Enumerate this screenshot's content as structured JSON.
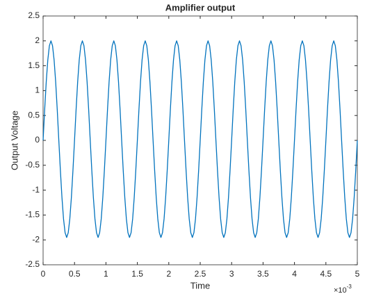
{
  "chart_data": {
    "type": "line",
    "title": "Amplifier output",
    "xlabel": "Time",
    "ylabel": "Output Voltage",
    "x_exponent": {
      "base": "×10",
      "power": "-3"
    },
    "xlim": [
      0,
      0.005
    ],
    "ylim": [
      -2.5,
      2.5
    ],
    "xticks": [
      0,
      {
        "value": 0.0005,
        "label": "0.5"
      },
      {
        "value": 0.001,
        "label": "1"
      },
      {
        "value": 0.0015,
        "label": "1.5"
      },
      {
        "value": 0.002,
        "label": "2"
      },
      {
        "value": 0.0025,
        "label": "2.5"
      },
      {
        "value": 0.003,
        "label": "3"
      },
      {
        "value": 0.0035,
        "label": "3.5"
      },
      {
        "value": 0.004,
        "label": "4"
      },
      {
        "value": 0.0045,
        "label": "4.5"
      },
      {
        "value": 0.005,
        "label": "5"
      }
    ],
    "yticks": [
      -2.5,
      -2,
      -1.5,
      -1,
      -0.5,
      0,
      0.5,
      1,
      1.5,
      2,
      2.5
    ],
    "grid": false,
    "x": [
      0,
      2.5e-05,
      5e-05,
      7.5e-05,
      0.0001,
      0.000125,
      0.00015,
      0.000175,
      0.0002,
      0.000225,
      0.00025,
      0.000275,
      0.0003,
      0.000325,
      0.00035,
      0.000375,
      0.0004,
      0.000425,
      0.00045,
      0.000475,
      0.0005,
      0.000525,
      0.00055,
      0.000575,
      0.0006,
      0.000625,
      0.00065,
      0.000675,
      0.0007,
      0.000725,
      0.00075,
      0.000775,
      0.0008,
      0.000825,
      0.00085,
      0.000875,
      0.0009,
      0.000925,
      0.00095,
      0.000975,
      0.001,
      0.001025,
      0.00105,
      0.001075,
      0.0011,
      0.001125,
      0.00115,
      0.001175,
      0.0012,
      0.001225,
      0.00125,
      0.001275,
      0.0013,
      0.001325,
      0.00135,
      0.001375,
      0.0014,
      0.001425,
      0.00145,
      0.001475,
      0.0015,
      0.001525,
      0.00155,
      0.001575,
      0.0016,
      0.001625,
      0.00165,
      0.001675,
      0.0017,
      0.001725,
      0.00175,
      0.001775,
      0.0018,
      0.001825,
      0.00185,
      0.001875,
      0.0019,
      0.001925,
      0.00195,
      0.001975,
      0.002,
      0.002025,
      0.00205,
      0.002075,
      0.0021,
      0.002125,
      0.00215,
      0.002175,
      0.0022,
      0.002225,
      0.00225,
      0.002275,
      0.0023,
      0.002325,
      0.00235,
      0.002375,
      0.0024,
      0.002425,
      0.00245,
      0.002475,
      0.0025,
      0.002525,
      0.00255,
      0.002575,
      0.0026,
      0.002625,
      0.00265,
      0.002675,
      0.0027,
      0.002725,
      0.00275,
      0.002775,
      0.0028,
      0.002825,
      0.00285,
      0.002875,
      0.0029,
      0.002925,
      0.00295,
      0.002975,
      0.003,
      0.003025,
      0.00305,
      0.003075,
      0.0031,
      0.003125,
      0.00315,
      0.003175,
      0.0032,
      0.003225,
      0.00325,
      0.003275,
      0.0033,
      0.003325,
      0.00335,
      0.003375,
      0.0034,
      0.003425,
      0.00345,
      0.003475,
      0.0035,
      0.003525,
      0.00355,
      0.003575,
      0.0036,
      0.003625,
      0.00365,
      0.003675,
      0.0037,
      0.003725,
      0.00375,
      0.003775,
      0.0038,
      0.003825,
      0.00385,
      0.003875,
      0.0039,
      0.003925,
      0.00395,
      0.003975,
      0.004,
      0.004025,
      0.00405,
      0.004075,
      0.0041,
      0.004125,
      0.00415,
      0.004175,
      0.0042,
      0.004225,
      0.00425,
      0.004275,
      0.0043,
      0.004325,
      0.00435,
      0.004375,
      0.0044,
      0.004425,
      0.00445,
      0.004475,
      0.0045,
      0.004525,
      0.00455,
      0.004575,
      0.0046,
      0.004625,
      0.00465,
      0.004675,
      0.0047,
      0.004725,
      0.00475,
      0.004775,
      0.0048,
      0.004825,
      0.00485,
      0.004875,
      0.0049,
      0.004925,
      0.00495,
      0.004975,
      0.005
    ],
    "series": [
      {
        "color": "#0072bd",
        "values": [
          0,
          0.618,
          1.176,
          1.618,
          1.902,
          2,
          1.902,
          1.618,
          1.176,
          0.618,
          0,
          -0.603,
          -1.147,
          -1.578,
          -1.855,
          -1.95,
          -1.855,
          -1.578,
          -1.147,
          -0.603,
          0,
          0.618,
          1.176,
          1.618,
          1.902,
          2,
          1.902,
          1.618,
          1.176,
          0.618,
          0,
          -0.603,
          -1.147,
          -1.578,
          -1.855,
          -1.95,
          -1.855,
          -1.578,
          -1.147,
          -0.603,
          0,
          0.618,
          1.176,
          1.618,
          1.902,
          2,
          1.902,
          1.618,
          1.176,
          0.618,
          0,
          -0.603,
          -1.147,
          -1.578,
          -1.855,
          -1.95,
          -1.855,
          -1.578,
          -1.147,
          -0.603,
          0,
          0.618,
          1.176,
          1.618,
          1.902,
          2,
          1.902,
          1.618,
          1.176,
          0.618,
          0,
          -0.603,
          -1.147,
          -1.578,
          -1.855,
          -1.95,
          -1.855,
          -1.578,
          -1.147,
          -0.603,
          0,
          0.618,
          1.176,
          1.618,
          1.902,
          2,
          1.902,
          1.618,
          1.176,
          0.618,
          0,
          -0.603,
          -1.147,
          -1.578,
          -1.855,
          -1.95,
          -1.855,
          -1.578,
          -1.147,
          -0.603,
          0,
          0.618,
          1.176,
          1.618,
          1.902,
          2,
          1.902,
          1.618,
          1.176,
          0.618,
          0,
          -0.603,
          -1.147,
          -1.578,
          -1.855,
          -1.95,
          -1.855,
          -1.578,
          -1.147,
          -0.603,
          0,
          0.618,
          1.176,
          1.618,
          1.902,
          2,
          1.902,
          1.618,
          1.176,
          0.618,
          0,
          -0.603,
          -1.147,
          -1.578,
          -1.855,
          -1.95,
          -1.855,
          -1.578,
          -1.147,
          -0.603,
          0,
          0.618,
          1.176,
          1.618,
          1.902,
          2,
          1.902,
          1.618,
          1.176,
          0.618,
          0,
          -0.603,
          -1.147,
          -1.578,
          -1.855,
          -1.95,
          -1.855,
          -1.578,
          -1.147,
          -0.603,
          0,
          0.618,
          1.176,
          1.618,
          1.902,
          2,
          1.902,
          1.618,
          1.176,
          0.618,
          0,
          -0.603,
          -1.147,
          -1.578,
          -1.855,
          -1.95,
          -1.855,
          -1.578,
          -1.147,
          -0.603,
          0,
          0.618,
          1.176,
          1.618,
          1.902,
          2,
          1.902,
          1.618,
          1.176,
          0.618,
          0,
          -0.603,
          -1.147,
          -1.578,
          -1.855,
          -1.95,
          -1.855,
          -1.578,
          -1.147,
          -0.603,
          0
        ]
      }
    ]
  }
}
